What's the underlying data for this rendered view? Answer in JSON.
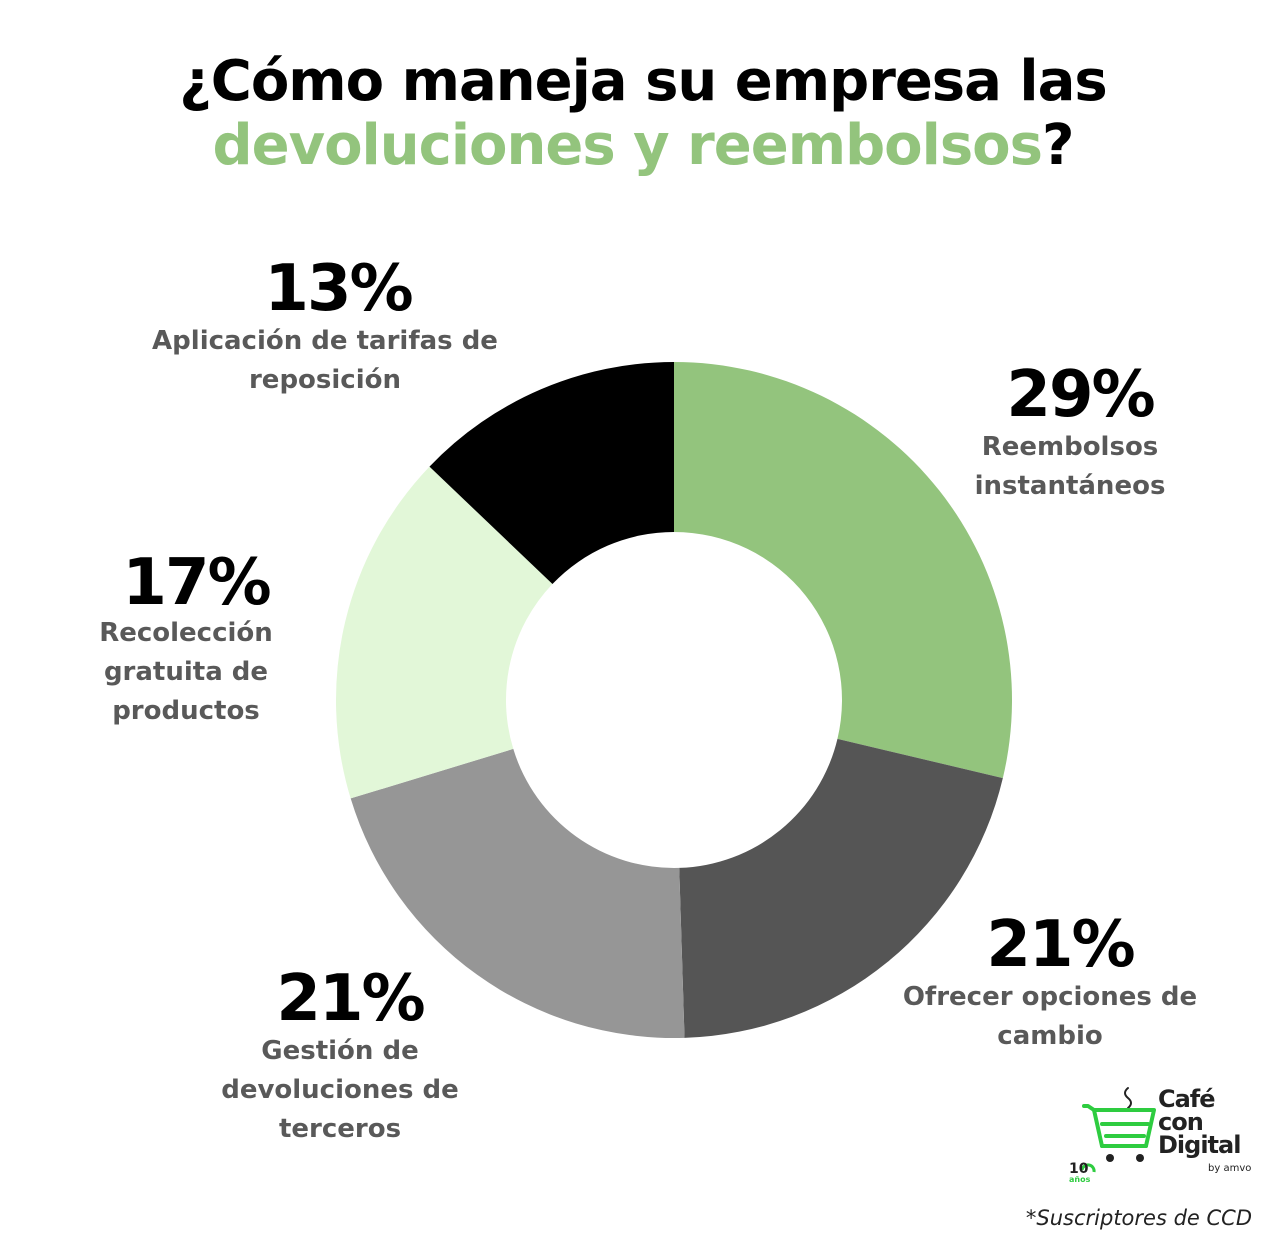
{
  "title": {
    "line1": "¿Cómo maneja su empresa las",
    "line2_accent": "devoluciones y reembolsos",
    "line2_end": "?"
  },
  "chart_data": {
    "type": "pie",
    "donut": true,
    "title": "¿Cómo maneja su empresa las devoluciones y reembolsos?",
    "slices": [
      {
        "pct_label": "29%",
        "value": 29,
        "label_lines": [
          "Reembolsos",
          "instantáneos"
        ],
        "color": "#93c47d"
      },
      {
        "pct_label": "21%",
        "value": 21,
        "label_lines": [
          "Ofrecer opciones de",
          "cambio"
        ],
        "color": "#555555"
      },
      {
        "pct_label": "21%",
        "value": 21,
        "label_lines": [
          "Gestión de",
          "devoluciones de",
          "terceros"
        ],
        "color": "#969696"
      },
      {
        "pct_label": "17%",
        "value": 17,
        "label_lines": [
          "Recolección",
          "gratuita de",
          "productos"
        ],
        "color": "#e2f7d8"
      },
      {
        "pct_label": "13%",
        "value": 13,
        "label_lines": [
          "Aplicación de tarifas de",
          "reposición"
        ],
        "color": "#000000"
      }
    ]
  },
  "logo": {
    "line1": "Café",
    "line2": "con",
    "line3": "Digital",
    "by": "by amvo",
    "anniversary_number": "10",
    "anniversary_word": "años",
    "icon": "cart-cup-icon",
    "color": "#2ecc40"
  },
  "footnote": "*Suscriptores de CCD"
}
